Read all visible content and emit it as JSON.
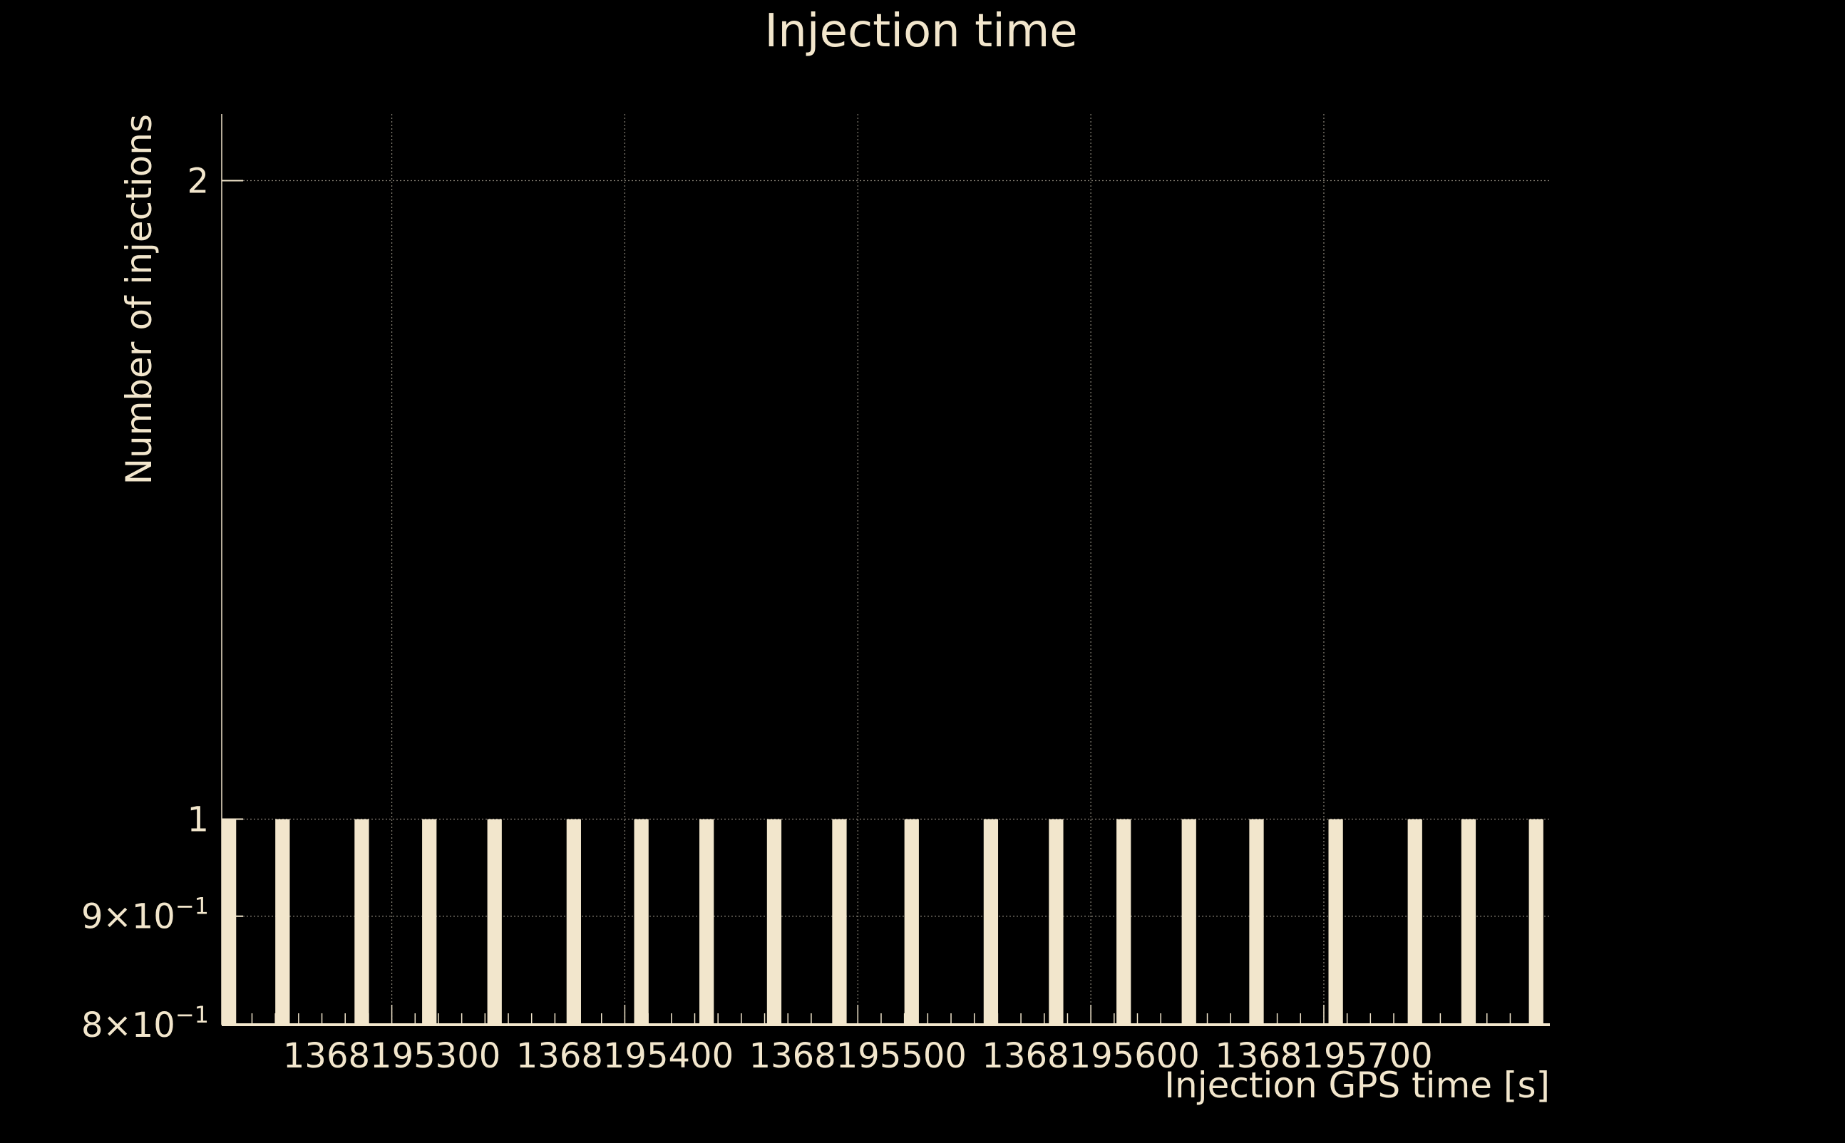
{
  "chart_data": {
    "type": "bar",
    "title": "Injection time",
    "xlabel": "Injection GPS time [s]",
    "ylabel": "Number of injections",
    "xlim": [
      1368195227,
      1368195797
    ],
    "ylim": [
      0.8,
      2.15
    ],
    "yscale": "log",
    "grid": true,
    "x_ticks": [
      1368195300,
      1368195400,
      1368195500,
      1368195600,
      1368195700
    ],
    "x_tick_labels": [
      "1368195300",
      "1368195400",
      "1368195500",
      "1368195600",
      "1368195700"
    ],
    "y_ticks": [
      {
        "value": 0.8,
        "mantissa": "8",
        "exponent": "−1"
      },
      {
        "value": 0.9,
        "mantissa": "9",
        "exponent": "−1"
      },
      {
        "value": 1,
        "label": "1"
      },
      {
        "value": 2,
        "label": "2"
      }
    ],
    "bin_width": 6.2,
    "series": [
      {
        "x": [
          1368195227,
          1368195250,
          1368195284,
          1368195313,
          1368195341,
          1368195375,
          1368195404,
          1368195432,
          1368195461,
          1368195489,
          1368195520,
          1368195554,
          1368195582,
          1368195611,
          1368195639,
          1368195668,
          1368195702,
          1368195736,
          1368195759,
          1368195788
        ],
        "values": [
          1,
          1,
          1,
          1,
          1,
          1,
          1,
          1,
          1,
          1,
          1,
          1,
          1,
          1,
          1,
          1,
          1,
          1,
          1,
          1
        ]
      }
    ],
    "colors": {
      "background": "#000000",
      "foreground": "#f2e6cc",
      "bar_fill": "#f2e6cc",
      "grid": "#8a8478"
    }
  }
}
